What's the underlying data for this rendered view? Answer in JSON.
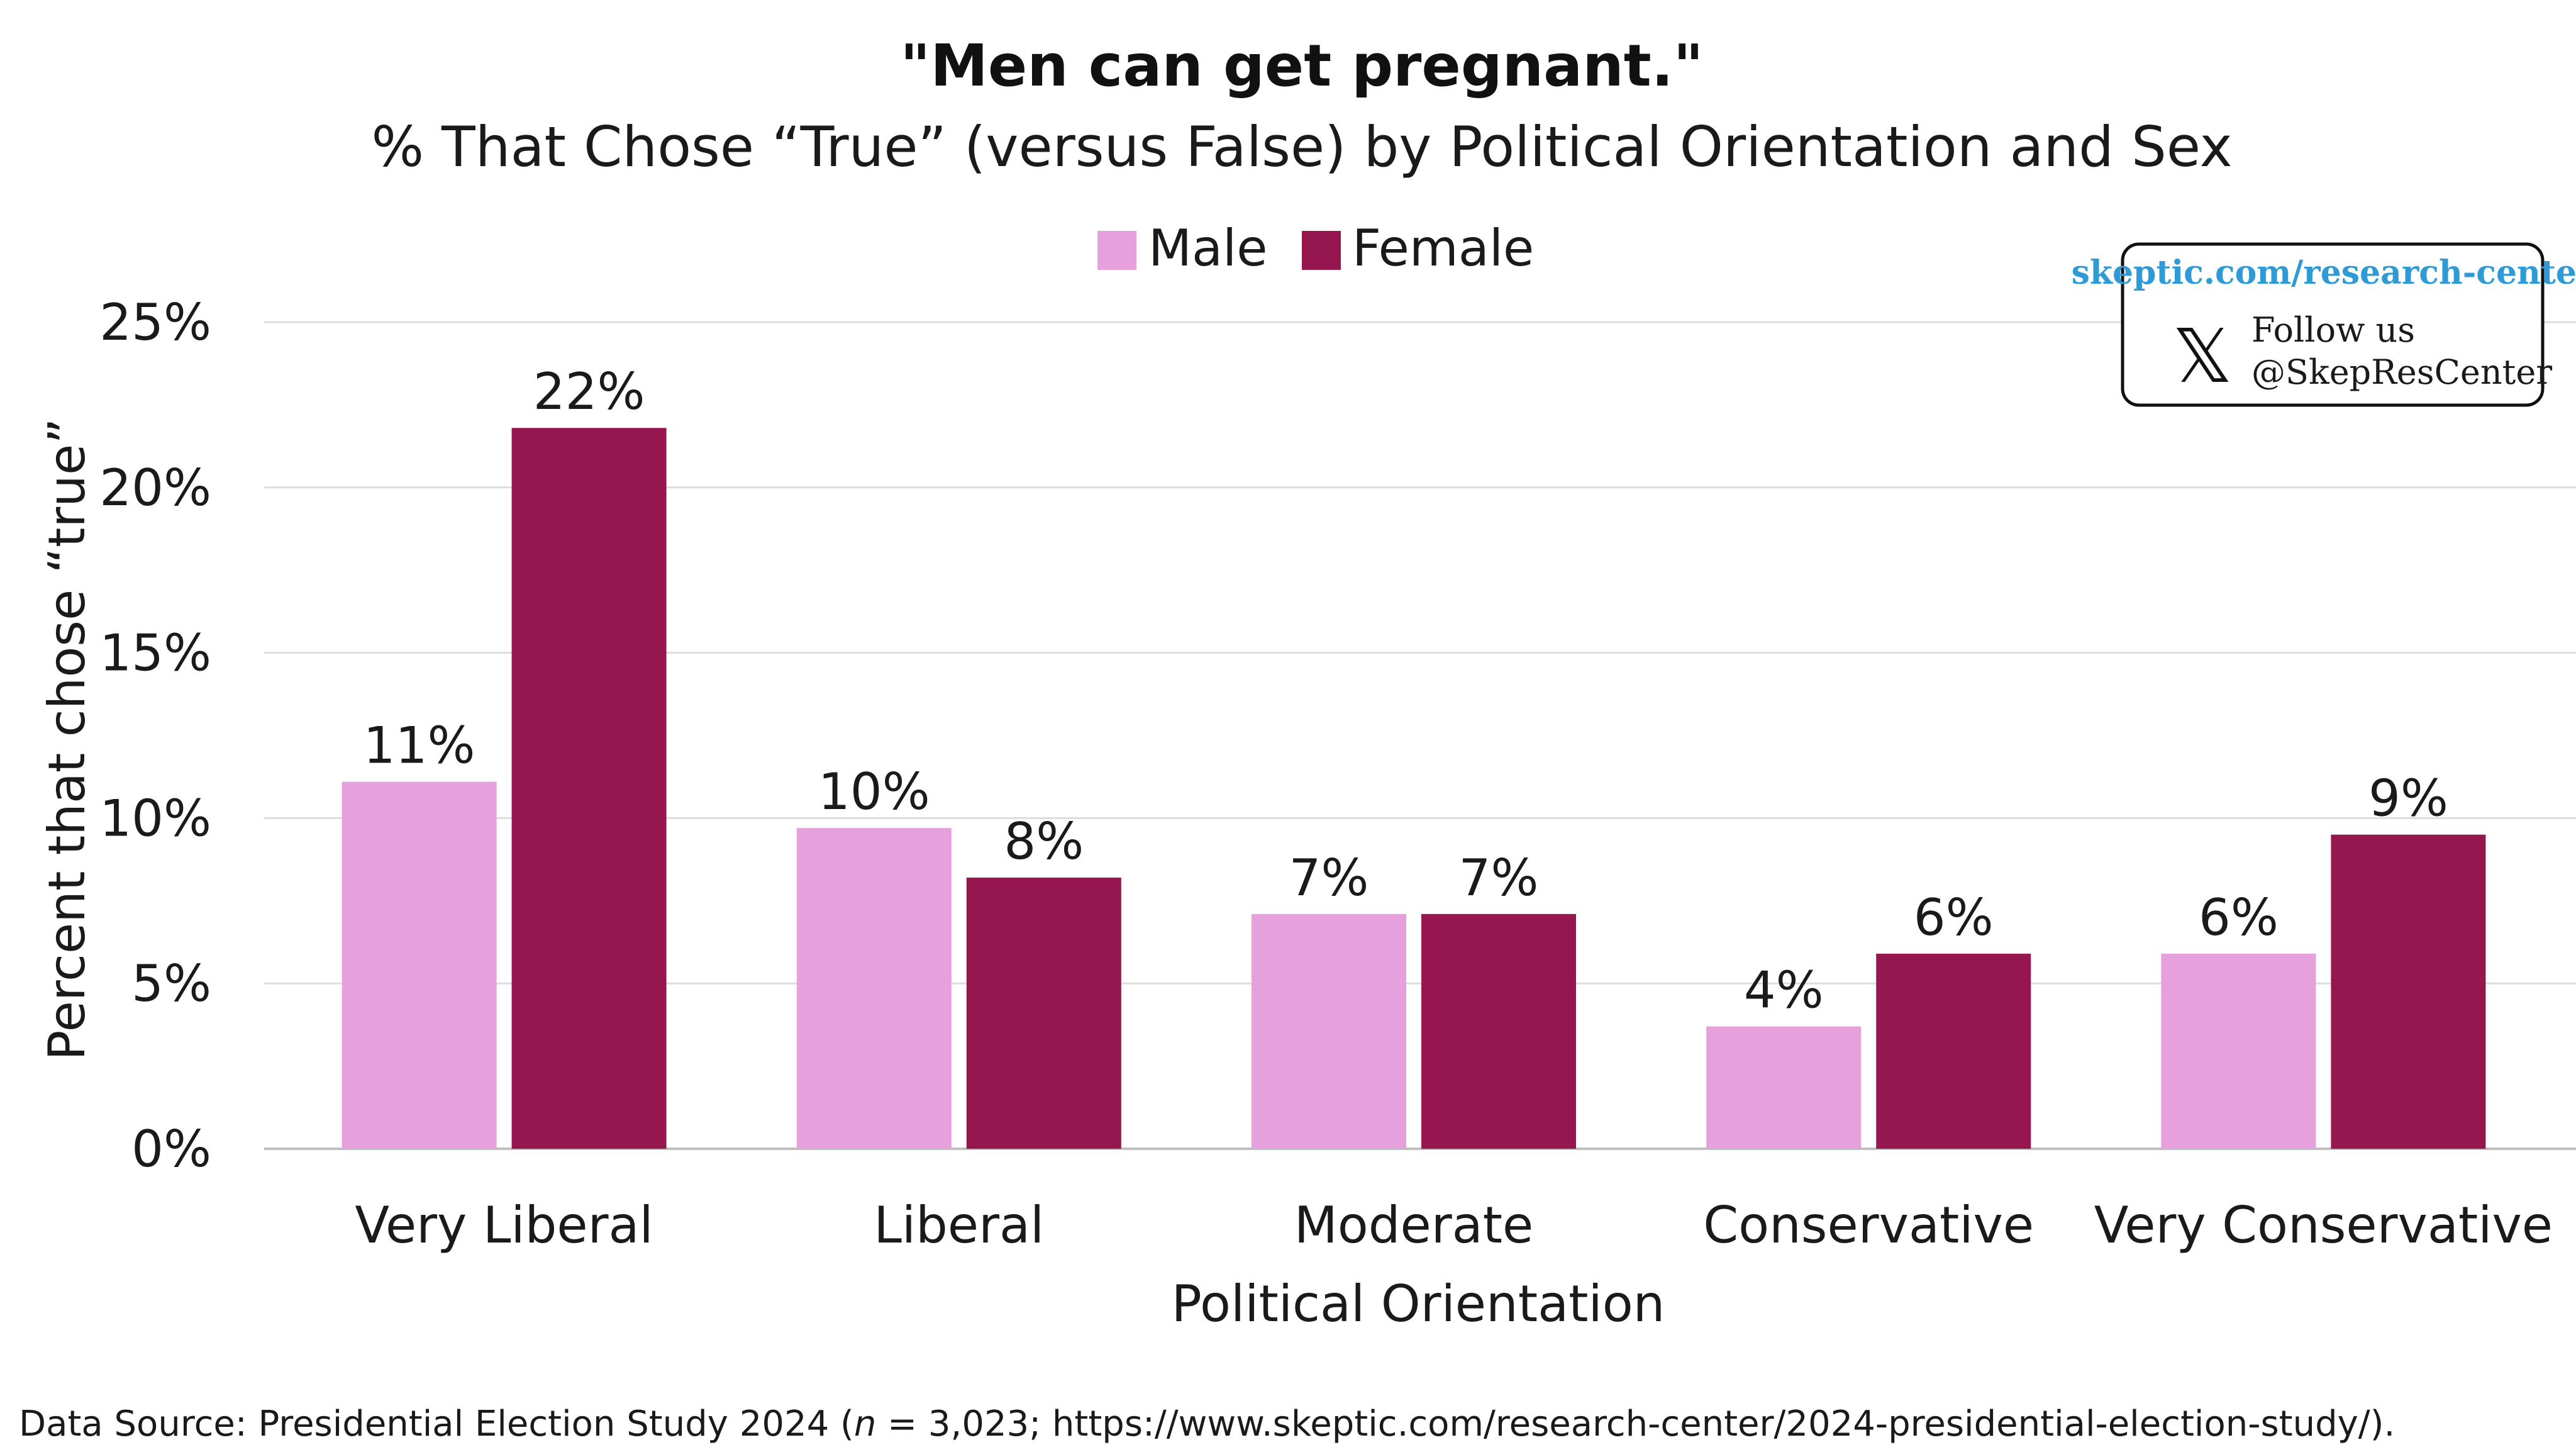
{
  "colors": {
    "male": "#E6A0DC",
    "female": "#961650",
    "gridline": "#DDDDDD",
    "axis": "#BFBFBF",
    "badge_link": "#2E9BD6",
    "badge_border": "#111111"
  },
  "chart_data": {
    "type": "bar",
    "title": "\"Men can get pregnant.\"",
    "subtitle": "% That Chose “True” (versus False) by Political Orientation and Sex",
    "xlabel": "Political Orientation",
    "ylabel": "Percent that chose “true”",
    "categories": [
      "Very Liberal",
      "Liberal",
      "Moderate",
      "Conservative",
      "Very Conservative"
    ],
    "series": [
      {
        "name": "Male",
        "values": [
          11.1,
          9.7,
          7.1,
          3.7,
          5.9
        ],
        "labels": [
          "11%",
          "10%",
          "7%",
          "4%",
          "6%"
        ]
      },
      {
        "name": "Female",
        "values": [
          21.8,
          8.2,
          7.1,
          5.9,
          9.5
        ],
        "labels": [
          "22%",
          "8%",
          "7%",
          "6%",
          "9%"
        ]
      }
    ],
    "ylim": [
      0,
      25
    ],
    "yticks": [
      0,
      5,
      10,
      15,
      20,
      25
    ],
    "ytick_labels": [
      "0%",
      "5%",
      "10%",
      "15%",
      "20%",
      "25%"
    ],
    "grid": true,
    "legend_position": "top-center"
  },
  "badge": {
    "link": "skeptic.com/research-center",
    "follow": "Follow us",
    "handle": "@SkepResCenter",
    "logo": "𝕏",
    "logo_icon": "x-logo-icon"
  },
  "source": {
    "prefix": "Data Source: Presidential Election Study 2024 (",
    "n_symbol": "n",
    "suffix": " = 3,023; https://www.skeptic.com/research-center/2024-presidential-election-study/)."
  }
}
